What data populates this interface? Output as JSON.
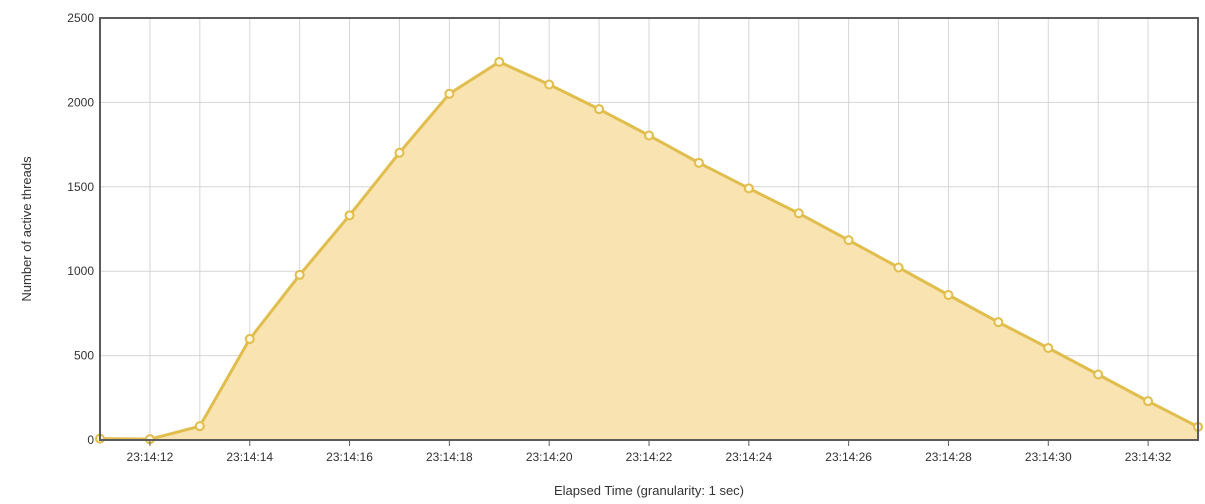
{
  "chart_data": {
    "type": "area",
    "title": "",
    "xlabel": "Elapsed Time (granularity: 1 sec)",
    "ylabel": "Number of active threads",
    "x": [
      "23:14:11",
      "23:14:12",
      "23:14:13",
      "23:14:14",
      "23:14:15",
      "23:14:16",
      "23:14:17",
      "23:14:18",
      "23:14:19",
      "23:14:20",
      "23:14:21",
      "23:14:22",
      "23:14:23",
      "23:14:24",
      "23:14:25",
      "23:14:26",
      "23:14:27",
      "23:14:28",
      "23:14:29",
      "23:14:30",
      "23:14:31",
      "23:14:32",
      "23:14:33"
    ],
    "x_tick_labels": [
      "23:14:12",
      "23:14:14",
      "23:14:16",
      "23:14:18",
      "23:14:20",
      "23:14:22",
      "23:14:24",
      "23:14:26",
      "23:14:28",
      "23:14:30",
      "23:14:32"
    ],
    "y_ticks": [
      0,
      500,
      1000,
      1500,
      2000,
      2500
    ],
    "ylim": [
      0,
      2500
    ],
    "grid": true,
    "series": [
      {
        "values": [
          8,
          5,
          82,
          598,
          978,
          1331,
          1702,
          2051,
          2240,
          2106,
          1960,
          1804,
          1642,
          1491,
          1343,
          1184,
          1022,
          859,
          698,
          545,
          388,
          230,
          78
        ]
      }
    ],
    "colors": {
      "line": "#e0bd4c",
      "fill": "#f8e3b1",
      "marker_fill": "#fff7dd",
      "grid": "#d6d6d6",
      "frame": "#5b5b5b"
    }
  }
}
